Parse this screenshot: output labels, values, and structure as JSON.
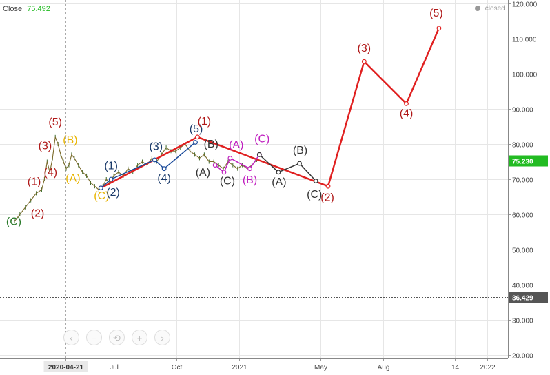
{
  "header": {
    "label": "Close",
    "value": "75.492"
  },
  "status": {
    "text": "closed"
  },
  "nav": {
    "icons": [
      "‹",
      "−",
      "⟲",
      "+",
      "›"
    ]
  },
  "chart_data": {
    "type": "line",
    "xlabel": "",
    "ylabel": "",
    "ylim": [
      19,
      121
    ],
    "y_ticks": [
      "120.000",
      "110.000",
      "100.000",
      "90.000",
      "80.000",
      "70.000",
      "60.000",
      "50.000",
      "40.000",
      "30.000",
      "20.000"
    ],
    "x_ticks": [
      "2020-04-21",
      "Jul",
      "Oct",
      "2021",
      "May",
      "Aug",
      "14",
      "2022"
    ],
    "price_lines": [
      {
        "label": "75.230",
        "value": 75.23,
        "color": "#22bb22"
      },
      {
        "label": "36.429",
        "value": 36.429,
        "color": "#555555"
      }
    ],
    "price_series": [
      [
        "2020-02-06",
        58
      ],
      [
        "2020-02-14",
        60
      ],
      [
        "2020-02-22",
        62
      ],
      [
        "2020-03-01",
        64
      ],
      [
        "2020-03-09",
        66
      ],
      [
        "2020-03-17",
        67
      ],
      [
        "2020-03-21",
        70
      ],
      [
        "2020-03-25",
        75
      ],
      [
        "2020-03-29",
        72
      ],
      [
        "2020-04-02",
        76
      ],
      [
        "2020-04-06",
        82
      ],
      [
        "2020-04-10",
        80
      ],
      [
        "2020-04-14",
        77
      ],
      [
        "2020-04-18",
        75
      ],
      [
        "2020-04-22",
        73
      ],
      [
        "2020-04-26",
        74
      ],
      [
        "2020-04-30",
        77
      ],
      [
        "2020-05-04",
        76
      ],
      [
        "2020-05-10",
        74
      ],
      [
        "2020-05-16",
        72
      ],
      [
        "2020-05-22",
        71
      ],
      [
        "2020-05-28",
        69
      ],
      [
        "2020-06-03",
        68
      ],
      [
        "2020-06-09",
        67
      ],
      [
        "2020-06-15",
        68
      ],
      [
        "2020-06-20",
        70
      ],
      [
        "2020-06-25",
        69
      ],
      [
        "2020-07-01",
        71
      ],
      [
        "2020-07-08",
        72
      ],
      [
        "2020-07-15",
        71
      ],
      [
        "2020-07-22",
        73
      ],
      [
        "2020-07-29",
        72
      ],
      [
        "2020-08-05",
        74
      ],
      [
        "2020-08-12",
        75
      ],
      [
        "2020-08-19",
        74
      ],
      [
        "2020-08-26",
        76
      ],
      [
        "2020-09-02",
        75
      ],
      [
        "2020-09-09",
        77
      ],
      [
        "2020-09-16",
        79
      ],
      [
        "2020-09-23",
        78
      ],
      [
        "2020-09-30",
        78
      ],
      [
        "2020-10-07",
        79
      ],
      [
        "2020-10-14",
        80
      ],
      [
        "2020-10-21",
        78
      ],
      [
        "2020-10-28",
        77
      ],
      [
        "2020-11-04",
        76
      ],
      [
        "2020-11-11",
        77
      ],
      [
        "2020-11-18",
        75
      ],
      [
        "2020-11-25",
        75
      ],
      [
        "2020-12-02",
        74
      ],
      [
        "2020-12-09",
        73
      ],
      [
        "2020-12-16",
        75
      ],
      [
        "2020-12-23",
        74
      ],
      [
        "2020-12-30",
        73
      ],
      [
        "2021-01-06",
        74
      ],
      [
        "2021-01-13",
        73
      ],
      [
        "2021-01-20",
        74
      ],
      [
        "2021-01-27",
        75.49
      ]
    ],
    "wave_paths": [
      {
        "name": "primary",
        "color": "#e02020",
        "points": [
          [
            "2020-06-12",
            67.5
          ],
          [
            "2020-11-01",
            82
          ],
          [
            "2021-05-12",
            68
          ],
          [
            "2021-07-04",
            103.5
          ],
          [
            "2021-09-04",
            91.5
          ],
          [
            "2021-10-22",
            113
          ]
        ]
      },
      {
        "name": "minor-blue",
        "color": "#1a4a9a",
        "points": [
          [
            "2020-06-12",
            67.5
          ],
          [
            "2020-06-27",
            70
          ],
          [
            "2020-08-30",
            75.5
          ],
          [
            "2020-09-13",
            73
          ],
          [
            "2020-10-29",
            80.5
          ]
        ]
      },
      {
        "name": "minor-purple",
        "color": "#c020c0",
        "points": [
          [
            "2020-11-27",
            74
          ],
          [
            "2020-12-10",
            72
          ],
          [
            "2020-12-19",
            76
          ],
          [
            "2021-01-17",
            73
          ],
          [
            "2021-01-31",
            77
          ]
        ]
      },
      {
        "name": "minor-black",
        "color": "#333333",
        "points": [
          [
            "2021-01-31",
            77
          ],
          [
            "2021-02-28",
            72
          ],
          [
            "2021-03-31",
            74.5
          ],
          [
            "2021-04-24",
            69.5
          ]
        ]
      }
    ],
    "labels": [
      {
        "text": "(5)",
        "x": "2020-04-06",
        "y": 85.3,
        "color": "#b01818",
        "size": 16
      },
      {
        "text": "(3)",
        "x": "2020-03-22",
        "y": 78.5,
        "color": "#b01818",
        "size": 16
      },
      {
        "text": "(4)",
        "x": "2020-03-30",
        "y": 71,
        "color": "#b01818",
        "size": 16
      },
      {
        "text": "(1)",
        "x": "2020-03-06",
        "y": 68.3,
        "color": "#b01818",
        "size": 16
      },
      {
        "text": "(2)",
        "x": "2020-03-11",
        "y": 59.3,
        "color": "#b01818",
        "size": 16
      },
      {
        "text": "(C)",
        "x": "2020-02-05",
        "y": 57,
        "color": "#2a7a2a",
        "size": 16
      },
      {
        "text": "(B)",
        "x": "2020-04-28",
        "y": 80.2,
        "color": "#e8b400",
        "size": 16
      },
      {
        "text": "(A)",
        "x": "2020-05-02",
        "y": 69.3,
        "color": "#e8b400",
        "size": 16
      },
      {
        "text": "(C)",
        "x": "2020-06-13",
        "y": 64.3,
        "color": "#e8b400",
        "size": 16
      },
      {
        "text": "(1)",
        "x": "2020-06-27",
        "y": 72.8,
        "color": "#1a3a6a",
        "size": 16
      },
      {
        "text": "(2)",
        "x": "2020-06-30",
        "y": 65.3,
        "color": "#1a3a6a",
        "size": 16
      },
      {
        "text": "(3)",
        "x": "2020-09-01",
        "y": 78.3,
        "color": "#1a3a6a",
        "size": 16
      },
      {
        "text": "(4)",
        "x": "2020-09-13",
        "y": 69.3,
        "color": "#1a3a6a",
        "size": 16
      },
      {
        "text": "(5)",
        "x": "2020-10-30",
        "y": 83.3,
        "color": "#1a3a6a",
        "size": 16
      },
      {
        "text": "(1)",
        "x": "2020-11-11",
        "y": 85.5,
        "color": "#b01818",
        "size": 16
      },
      {
        "text": "(B)",
        "x": "2020-11-21",
        "y": 79,
        "color": "#333333",
        "size": 16
      },
      {
        "text": "(A)",
        "x": "2020-11-09",
        "y": 71,
        "color": "#333333",
        "size": 16
      },
      {
        "text": "(C)",
        "x": "2020-12-15",
        "y": 68.5,
        "color": "#333333",
        "size": 16
      },
      {
        "text": "(A)",
        "x": "2020-12-28",
        "y": 78.8,
        "color": "#c020c0",
        "size": 16
      },
      {
        "text": "(B)",
        "x": "2021-01-17",
        "y": 68.8,
        "color": "#c020c0",
        "size": 16
      },
      {
        "text": "(C)",
        "x": "2021-02-04",
        "y": 80.5,
        "color": "#c020c0",
        "size": 16
      },
      {
        "text": "(B)",
        "x": "2021-04-01",
        "y": 77.3,
        "color": "#333333",
        "size": 16
      },
      {
        "text": "(A)",
        "x": "2021-03-01",
        "y": 68.2,
        "color": "#333333",
        "size": 16
      },
      {
        "text": "(C)",
        "x": "2021-04-22",
        "y": 64.7,
        "color": "#333333",
        "size": 16
      },
      {
        "text": "(2)",
        "x": "2021-05-11",
        "y": 63.8,
        "color": "#b01818",
        "size": 16
      },
      {
        "text": "(3)",
        "x": "2021-07-04",
        "y": 106.3,
        "color": "#b01818",
        "size": 16
      },
      {
        "text": "(4)",
        "x": "2021-09-04",
        "y": 87.8,
        "color": "#b01818",
        "size": 16
      },
      {
        "text": "(5)",
        "x": "2021-10-18",
        "y": 116.3,
        "color": "#b01818",
        "size": 16
      }
    ]
  }
}
